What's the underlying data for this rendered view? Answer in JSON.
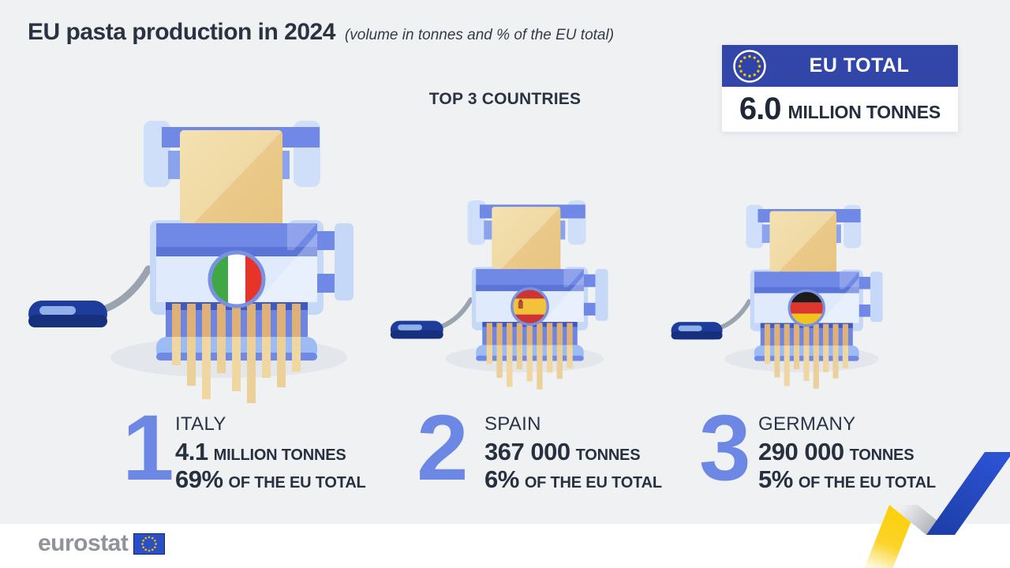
{
  "title": {
    "main": "EU pasta production in 2024",
    "subtitle": "(volume in tonnes and % of the EU total)"
  },
  "section_heading": "TOP 3 COUNTRIES",
  "eu_total": {
    "label": "EU TOTAL",
    "value": "6.0",
    "unit": "MILLION TONNES"
  },
  "countries": [
    {
      "rank": "1",
      "name": "ITALY",
      "volume_value": "4.1",
      "volume_unit": "MILLION TONNES",
      "share_value": "69%",
      "share_unit": "OF THE EU TOTAL"
    },
    {
      "rank": "2",
      "name": "SPAIN",
      "volume_value": "367 000",
      "volume_unit": "TONNES",
      "share_value": "6%",
      "share_unit": "OF THE EU TOTAL"
    },
    {
      "rank": "3",
      "name": "GERMANY",
      "volume_value": "290 000",
      "volume_unit": "TONNES",
      "share_value": "5%",
      "share_unit": "OF THE EU TOTAL"
    }
  ],
  "footer": {
    "brand": "eurostat"
  },
  "colors": {
    "background": "#f0f1f3",
    "accent_blue": "#3245a8",
    "rank_number_blue": "#6c87e4",
    "text_dark": "#2b3447",
    "machine_blue": "#7088e6",
    "machine_light_blue": "#c6d8f8",
    "pasta_dough": "#eccb8d",
    "ribbon_yellow": "#fcd005",
    "ribbon_blue": "#2a4ec8",
    "eu_star_gold": "#f7c600"
  },
  "chart_data": {
    "type": "table",
    "title": "EU pasta production in 2024",
    "subtitle": "(volume in tonnes and % of the EU total)",
    "categories": [
      "Italy",
      "Spain",
      "Germany"
    ],
    "series": [
      {
        "name": "production_volume_tonnes",
        "values": [
          4100000,
          367000,
          290000
        ]
      },
      {
        "name": "share_of_eu_total_percent",
        "values": [
          69,
          6,
          5
        ]
      }
    ],
    "eu_total_tonnes": 6000000,
    "annotations": [
      "EU TOTAL 6.0 MILLION TONNES",
      "TOP 3 COUNTRIES"
    ]
  }
}
